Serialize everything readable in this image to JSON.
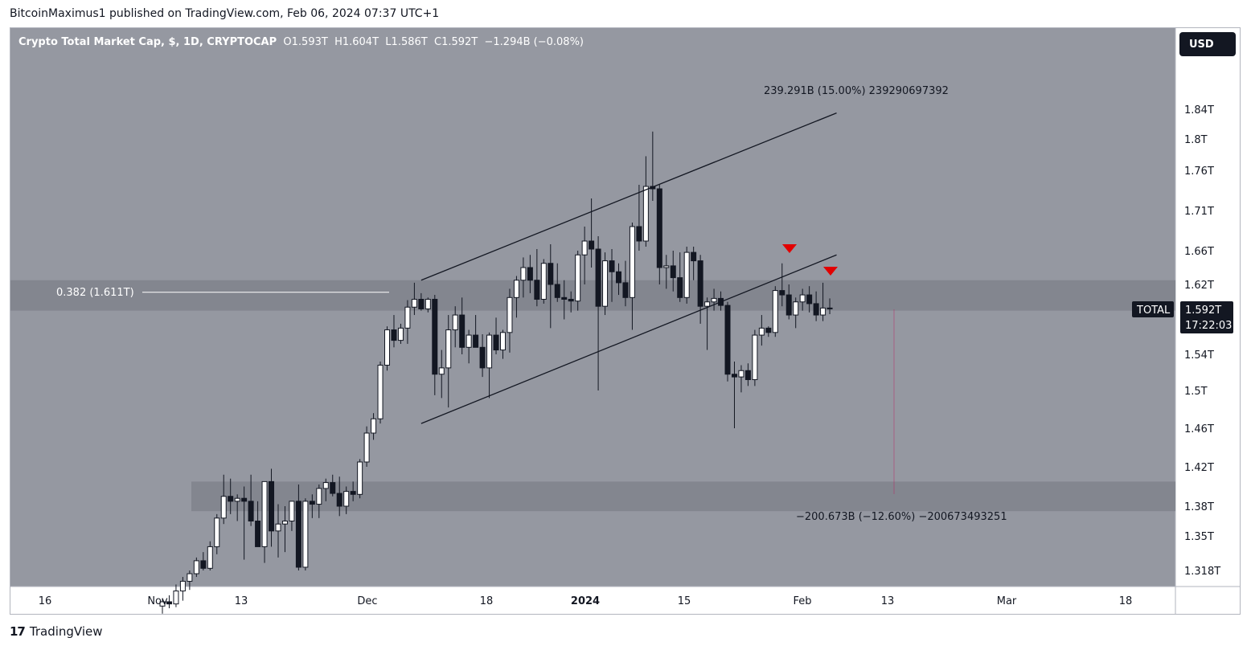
{
  "publisher": "BitcoinMaximus1 published on TradingView.com, Feb 06, 2024 07:37 UTC+1",
  "footer_brand": "TradingView",
  "currency_button": "USD",
  "colors": {
    "chart_bg": "#9598a1",
    "axis_bg": "#ffffff",
    "zone": "#81848d",
    "up_candle": "#ffffff",
    "down_candle": "#131722",
    "marker": "#e20000"
  },
  "header": {
    "symbol": "Crypto Total Market Cap, $, 1D, CRYPTOCAP",
    "o_label": "O",
    "o_value": "1.593T",
    "h_label": "H",
    "h_value": "1.604T",
    "l_label": "L",
    "l_value": "1.586T",
    "c_label": "C",
    "c_value": "1.592T",
    "change": "−1.294B (−0.08%)"
  },
  "price_tag": {
    "name": "TOTAL",
    "price": "1.592T",
    "countdown": "17:22:03"
  },
  "annotations": {
    "fib": "0.382 (1.611T)",
    "upper_measure": "239.291B (15.00%) 239290697392",
    "lower_measure": "−200.673B (−12.60%) −200673493251"
  },
  "chart_data": {
    "type": "candlestick",
    "title": "Crypto Total Market Cap, $, 1D, CRYPTOCAP",
    "y_ticks": [
      "1.84T",
      "1.8T",
      "1.76T",
      "1.71T",
      "1.66T",
      "1.62T",
      "1.54T",
      "1.5T",
      "1.46T",
      "1.42T",
      "1.38T",
      "1.35T",
      "1.318T"
    ],
    "x_ticks": [
      "16",
      "Nov",
      "13",
      "Dec",
      "18",
      "2024",
      "15",
      "Feb",
      "13",
      "Mar",
      "18"
    ],
    "fib_level": 1.611,
    "resistance_zone": [
      1.59,
      1.625
    ],
    "support_zone": [
      1.375,
      1.405
    ],
    "channel": {
      "upper": [
        [
          "Dec 8",
          1.625
        ],
        [
          "Feb 7",
          1.835
        ]
      ],
      "lower": [
        [
          "Dec 8",
          1.465
        ],
        [
          "Feb 7",
          1.655
        ]
      ]
    },
    "candles": [
      {
        "o": 1.285,
        "h": 1.292,
        "l": 1.278,
        "c": 1.289
      },
      {
        "o": 1.289,
        "h": 1.295,
        "l": 1.283,
        "c": 1.287
      },
      {
        "o": 1.287,
        "h": 1.305,
        "l": 1.284,
        "c": 1.299
      },
      {
        "o": 1.299,
        "h": 1.312,
        "l": 1.29,
        "c": 1.308
      },
      {
        "o": 1.308,
        "h": 1.318,
        "l": 1.3,
        "c": 1.315
      },
      {
        "o": 1.315,
        "h": 1.33,
        "l": 1.312,
        "c": 1.327
      },
      {
        "o": 1.327,
        "h": 1.335,
        "l": 1.318,
        "c": 1.32
      },
      {
        "o": 1.32,
        "h": 1.345,
        "l": 1.318,
        "c": 1.34
      },
      {
        "o": 1.34,
        "h": 1.372,
        "l": 1.333,
        "c": 1.368
      },
      {
        "o": 1.368,
        "h": 1.412,
        "l": 1.362,
        "c": 1.39
      },
      {
        "o": 1.39,
        "h": 1.408,
        "l": 1.372,
        "c": 1.385
      },
      {
        "o": 1.385,
        "h": 1.392,
        "l": 1.365,
        "c": 1.388
      },
      {
        "o": 1.388,
        "h": 1.4,
        "l": 1.328,
        "c": 1.385
      },
      {
        "o": 1.385,
        "h": 1.412,
        "l": 1.36,
        "c": 1.365
      },
      {
        "o": 1.365,
        "h": 1.385,
        "l": 1.34,
        "c": 1.34
      },
      {
        "o": 1.34,
        "h": 1.405,
        "l": 1.325,
        "c": 1.405
      },
      {
        "o": 1.405,
        "h": 1.418,
        "l": 1.34,
        "c": 1.355
      },
      {
        "o": 1.355,
        "h": 1.382,
        "l": 1.33,
        "c": 1.362
      },
      {
        "o": 1.362,
        "h": 1.38,
        "l": 1.335,
        "c": 1.365
      },
      {
        "o": 1.365,
        "h": 1.385,
        "l": 1.355,
        "c": 1.385
      },
      {
        "o": 1.385,
        "h": 1.402,
        "l": 1.318,
        "c": 1.321
      },
      {
        "o": 1.321,
        "h": 1.388,
        "l": 1.318,
        "c": 1.385
      },
      {
        "o": 1.385,
        "h": 1.392,
        "l": 1.368,
        "c": 1.382
      },
      {
        "o": 1.382,
        "h": 1.402,
        "l": 1.368,
        "c": 1.398
      },
      {
        "o": 1.398,
        "h": 1.408,
        "l": 1.385,
        "c": 1.404
      },
      {
        "o": 1.404,
        "h": 1.412,
        "l": 1.39,
        "c": 1.393
      },
      {
        "o": 1.393,
        "h": 1.41,
        "l": 1.37,
        "c": 1.38
      },
      {
        "o": 1.38,
        "h": 1.4,
        "l": 1.372,
        "c": 1.395
      },
      {
        "o": 1.395,
        "h": 1.405,
        "l": 1.385,
        "c": 1.392
      },
      {
        "o": 1.392,
        "h": 1.428,
        "l": 1.388,
        "c": 1.425
      },
      {
        "o": 1.425,
        "h": 1.462,
        "l": 1.42,
        "c": 1.455
      },
      {
        "o": 1.455,
        "h": 1.476,
        "l": 1.448,
        "c": 1.47
      },
      {
        "o": 1.47,
        "h": 1.532,
        "l": 1.465,
        "c": 1.528
      },
      {
        "o": 1.528,
        "h": 1.572,
        "l": 1.522,
        "c": 1.568
      },
      {
        "o": 1.568,
        "h": 1.585,
        "l": 1.548,
        "c": 1.556
      },
      {
        "o": 1.556,
        "h": 1.575,
        "l": 1.552,
        "c": 1.57
      },
      {
        "o": 1.57,
        "h": 1.602,
        "l": 1.552,
        "c": 1.594
      },
      {
        "o": 1.594,
        "h": 1.622,
        "l": 1.585,
        "c": 1.603
      },
      {
        "o": 1.603,
        "h": 1.61,
        "l": 1.59,
        "c": 1.592
      },
      {
        "o": 1.592,
        "h": 1.605,
        "l": 1.588,
        "c": 1.603
      },
      {
        "o": 1.603,
        "h": 1.608,
        "l": 1.495,
        "c": 1.518
      },
      {
        "o": 1.518,
        "h": 1.545,
        "l": 1.492,
        "c": 1.525
      },
      {
        "o": 1.525,
        "h": 1.585,
        "l": 1.482,
        "c": 1.568
      },
      {
        "o": 1.568,
        "h": 1.595,
        "l": 1.548,
        "c": 1.585
      },
      {
        "o": 1.585,
        "h": 1.605,
        "l": 1.54,
        "c": 1.548
      },
      {
        "o": 1.548,
        "h": 1.568,
        "l": 1.53,
        "c": 1.562
      },
      {
        "o": 1.562,
        "h": 1.585,
        "l": 1.548,
        "c": 1.548
      },
      {
        "o": 1.548,
        "h": 1.563,
        "l": 1.515,
        "c": 1.525
      },
      {
        "o": 1.525,
        "h": 1.565,
        "l": 1.492,
        "c": 1.562
      },
      {
        "o": 1.562,
        "h": 1.582,
        "l": 1.54,
        "c": 1.545
      },
      {
        "o": 1.545,
        "h": 1.568,
        "l": 1.535,
        "c": 1.565
      },
      {
        "o": 1.565,
        "h": 1.615,
        "l": 1.542,
        "c": 1.605
      },
      {
        "o": 1.605,
        "h": 1.63,
        "l": 1.582,
        "c": 1.625
      },
      {
        "o": 1.625,
        "h": 1.652,
        "l": 1.605,
        "c": 1.64
      },
      {
        "o": 1.64,
        "h": 1.655,
        "l": 1.61,
        "c": 1.625
      },
      {
        "o": 1.625,
        "h": 1.662,
        "l": 1.595,
        "c": 1.603
      },
      {
        "o": 1.603,
        "h": 1.65,
        "l": 1.598,
        "c": 1.645
      },
      {
        "o": 1.645,
        "h": 1.668,
        "l": 1.57,
        "c": 1.62
      },
      {
        "o": 1.62,
        "h": 1.645,
        "l": 1.6,
        "c": 1.605
      },
      {
        "o": 1.605,
        "h": 1.625,
        "l": 1.58,
        "c": 1.603
      },
      {
        "o": 1.603,
        "h": 1.612,
        "l": 1.588,
        "c": 1.601
      },
      {
        "o": 1.601,
        "h": 1.66,
        "l": 1.59,
        "c": 1.655
      },
      {
        "o": 1.655,
        "h": 1.69,
        "l": 1.62,
        "c": 1.672
      },
      {
        "o": 1.672,
        "h": 1.725,
        "l": 1.64,
        "c": 1.662
      },
      {
        "o": 1.662,
        "h": 1.678,
        "l": 1.5,
        "c": 1.595
      },
      {
        "o": 1.595,
        "h": 1.658,
        "l": 1.585,
        "c": 1.648
      },
      {
        "o": 1.648,
        "h": 1.662,
        "l": 1.6,
        "c": 1.635
      },
      {
        "o": 1.635,
        "h": 1.645,
        "l": 1.608,
        "c": 1.622
      },
      {
        "o": 1.622,
        "h": 1.648,
        "l": 1.595,
        "c": 1.605
      },
      {
        "o": 1.605,
        "h": 1.695,
        "l": 1.568,
        "c": 1.69
      },
      {
        "o": 1.69,
        "h": 1.742,
        "l": 1.66,
        "c": 1.672
      },
      {
        "o": 1.672,
        "h": 1.778,
        "l": 1.665,
        "c": 1.74
      },
      {
        "o": 1.74,
        "h": 1.81,
        "l": 1.722,
        "c": 1.737
      },
      {
        "o": 1.737,
        "h": 1.742,
        "l": 1.62,
        "c": 1.64
      },
      {
        "o": 1.64,
        "h": 1.655,
        "l": 1.615,
        "c": 1.642
      },
      {
        "o": 1.642,
        "h": 1.66,
        "l": 1.612,
        "c": 1.628
      },
      {
        "o": 1.628,
        "h": 1.658,
        "l": 1.6,
        "c": 1.605
      },
      {
        "o": 1.605,
        "h": 1.665,
        "l": 1.598,
        "c": 1.658
      },
      {
        "o": 1.658,
        "h": 1.665,
        "l": 1.625,
        "c": 1.648
      },
      {
        "o": 1.648,
        "h": 1.655,
        "l": 1.575,
        "c": 1.595
      },
      {
        "o": 1.595,
        "h": 1.605,
        "l": 1.545,
        "c": 1.6
      },
      {
        "o": 1.6,
        "h": 1.615,
        "l": 1.59,
        "c": 1.604
      },
      {
        "o": 1.604,
        "h": 1.612,
        "l": 1.59,
        "c": 1.596
      },
      {
        "o": 1.596,
        "h": 1.6,
        "l": 1.51,
        "c": 1.518
      },
      {
        "o": 1.518,
        "h": 1.532,
        "l": 1.46,
        "c": 1.515
      },
      {
        "o": 1.515,
        "h": 1.528,
        "l": 1.498,
        "c": 1.522
      },
      {
        "o": 1.522,
        "h": 1.53,
        "l": 1.505,
        "c": 1.512
      },
      {
        "o": 1.512,
        "h": 1.568,
        "l": 1.505,
        "c": 1.562
      },
      {
        "o": 1.562,
        "h": 1.585,
        "l": 1.55,
        "c": 1.57
      },
      {
        "o": 1.57,
        "h": 1.572,
        "l": 1.56,
        "c": 1.565
      },
      {
        "o": 1.565,
        "h": 1.618,
        "l": 1.56,
        "c": 1.613
      },
      {
        "o": 1.613,
        "h": 1.645,
        "l": 1.595,
        "c": 1.608
      },
      {
        "o": 1.608,
        "h": 1.62,
        "l": 1.58,
        "c": 1.585
      },
      {
        "o": 1.585,
        "h": 1.605,
        "l": 1.57,
        "c": 1.6
      },
      {
        "o": 1.6,
        "h": 1.615,
        "l": 1.59,
        "c": 1.608
      },
      {
        "o": 1.608,
        "h": 1.618,
        "l": 1.588,
        "c": 1.598
      },
      {
        "o": 1.598,
        "h": 1.612,
        "l": 1.578,
        "c": 1.585
      },
      {
        "o": 1.585,
        "h": 1.622,
        "l": 1.578,
        "c": 1.593
      },
      {
        "o": 1.593,
        "h": 1.604,
        "l": 1.586,
        "c": 1.592
      }
    ]
  }
}
